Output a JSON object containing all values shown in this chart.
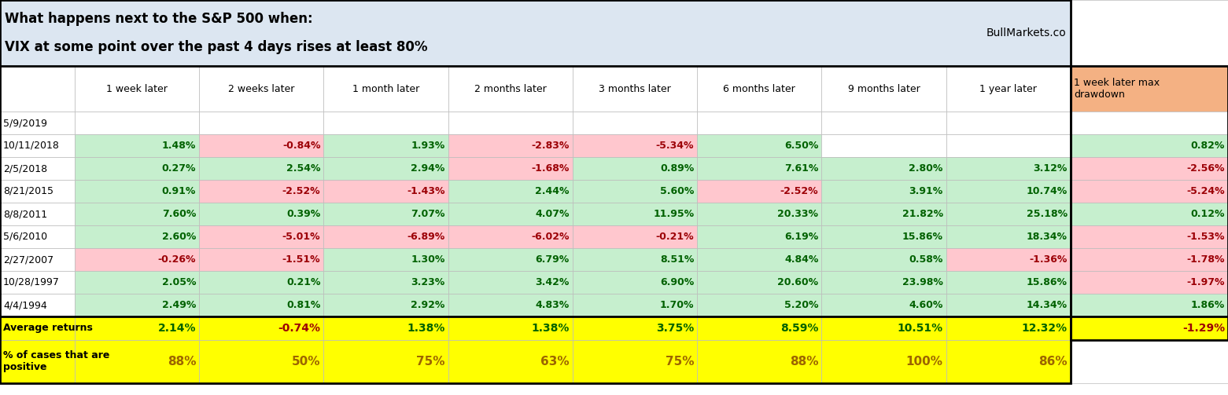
{
  "title_line1": "What happens next to the S&P 500 when:",
  "title_line2": "VIX at some point over the past 4 days rises at least 80%",
  "watermark": "BullMarkets.co",
  "col_headers": [
    "1 week later",
    "2 weeks later",
    "1 month later",
    "2 months later",
    "3 months later",
    "6 months later",
    "9 months later",
    "1 year later"
  ],
  "last_col_header": "1 week later max\ndrawdown",
  "rows": [
    {
      "date": "5/9/2019",
      "values": [
        null,
        null,
        null,
        null,
        null,
        null,
        null,
        null
      ],
      "last_val": null
    },
    {
      "date": "10/11/2018",
      "values": [
        1.48,
        -0.84,
        1.93,
        -2.83,
        -5.34,
        6.5,
        null,
        null
      ],
      "last_val": 0.82
    },
    {
      "date": "2/5/2018",
      "values": [
        0.27,
        2.54,
        2.94,
        -1.68,
        0.89,
        7.61,
        2.8,
        3.12
      ],
      "last_val": -2.56
    },
    {
      "date": "8/21/2015",
      "values": [
        0.91,
        -2.52,
        -1.43,
        2.44,
        5.6,
        -2.52,
        3.91,
        10.74
      ],
      "last_val": -5.24
    },
    {
      "date": "8/8/2011",
      "values": [
        7.6,
        0.39,
        7.07,
        4.07,
        11.95,
        20.33,
        21.82,
        25.18
      ],
      "last_val": 0.12
    },
    {
      "date": "5/6/2010",
      "values": [
        2.6,
        -5.01,
        -6.89,
        -6.02,
        -0.21,
        6.19,
        15.86,
        18.34
      ],
      "last_val": -1.53
    },
    {
      "date": "2/27/2007",
      "values": [
        -0.26,
        -1.51,
        1.3,
        6.79,
        8.51,
        4.84,
        0.58,
        -1.36
      ],
      "last_val": -1.78
    },
    {
      "date": "10/28/1997",
      "values": [
        2.05,
        0.21,
        3.23,
        3.42,
        6.9,
        20.6,
        23.98,
        15.86
      ],
      "last_val": -1.97
    },
    {
      "date": "4/4/1994",
      "values": [
        2.49,
        0.81,
        2.92,
        4.83,
        1.7,
        5.2,
        4.6,
        14.34
      ],
      "last_val": 1.86
    }
  ],
  "avg_row": {
    "label": "Average returns",
    "values": [
      2.14,
      -0.74,
      1.38,
      1.38,
      3.75,
      8.59,
      10.51,
      12.32
    ],
    "last_val": -1.29
  },
  "pct_row": {
    "label": "% of cases that are\npositive",
    "values": [
      "88%",
      "50%",
      "75%",
      "63%",
      "75%",
      "88%",
      "100%",
      "86%"
    ],
    "last_val": null
  },
  "colors": {
    "positive_bg": "#c6efce",
    "negative_bg": "#ffc7ce",
    "positive_text": "#006100",
    "negative_text": "#9c0006",
    "yellow_bg": "#ffff00",
    "yellow_text": "#9c6500",
    "last_col_header_bg": "#f4b183",
    "title_bg": "#dce6f1",
    "white_bg": "#ffffff"
  },
  "figsize": [
    15.61,
    5.03
  ],
  "dpi": 100
}
